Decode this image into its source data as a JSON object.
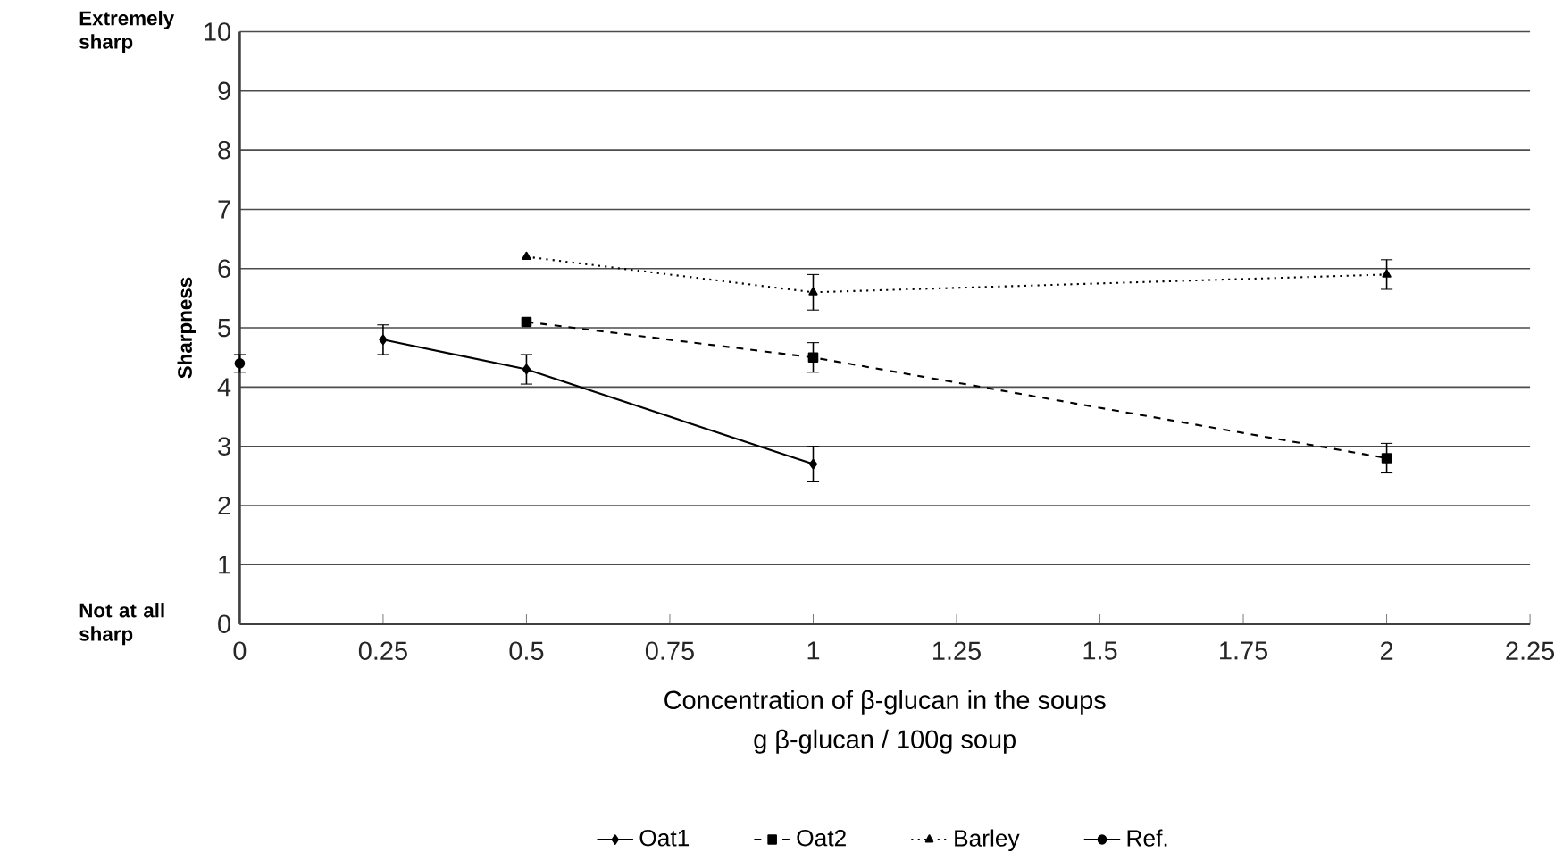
{
  "chart_data": {
    "type": "line",
    "ylabel": "Sharpness",
    "xlabel": "Concentration of β-glucan in the soups",
    "annotations": [
      "Extremely sharp",
      "Not at all sharp",
      "g β-glucan / 100g soup"
    ],
    "xlim": [
      0,
      2.25
    ],
    "xticks": [
      0,
      0.25,
      0.5,
      0.75,
      1,
      1.25,
      1.5,
      1.75,
      2,
      2.25
    ],
    "ylim": [
      0,
      10
    ],
    "yticks": [
      0,
      1,
      2,
      3,
      4,
      5,
      6,
      7,
      8,
      9,
      10
    ],
    "grid": "y",
    "legend": "bottom",
    "series": [
      {
        "name": "Oat1",
        "color": "#000000",
        "marker": "diamond",
        "line_style": "solid",
        "x": [
          0.25,
          0.5,
          1
        ],
        "values": [
          4.8,
          4.3,
          2.7
        ],
        "errors": [
          0.25,
          0.25,
          0.3
        ]
      },
      {
        "name": "Oat2",
        "color": "#000000",
        "marker": "square",
        "line_style": "dashed",
        "x": [
          0.5,
          1,
          2
        ],
        "values": [
          5.1,
          4.5,
          2.8
        ],
        "errors": [
          null,
          0.25,
          0.25
        ]
      },
      {
        "name": "Barley",
        "color": "#000000",
        "marker": "triangle",
        "line_style": "dotted",
        "x": [
          0.5,
          1,
          2
        ],
        "values": [
          6.2,
          5.6,
          5.9
        ],
        "errors": [
          null,
          0.3,
          0.25
        ]
      },
      {
        "name": "Ref.",
        "color": "#000000",
        "marker": "circle",
        "line_style": "solid",
        "x": [
          0
        ],
        "values": [
          4.4
        ],
        "errors": [
          0.15
        ]
      }
    ]
  }
}
